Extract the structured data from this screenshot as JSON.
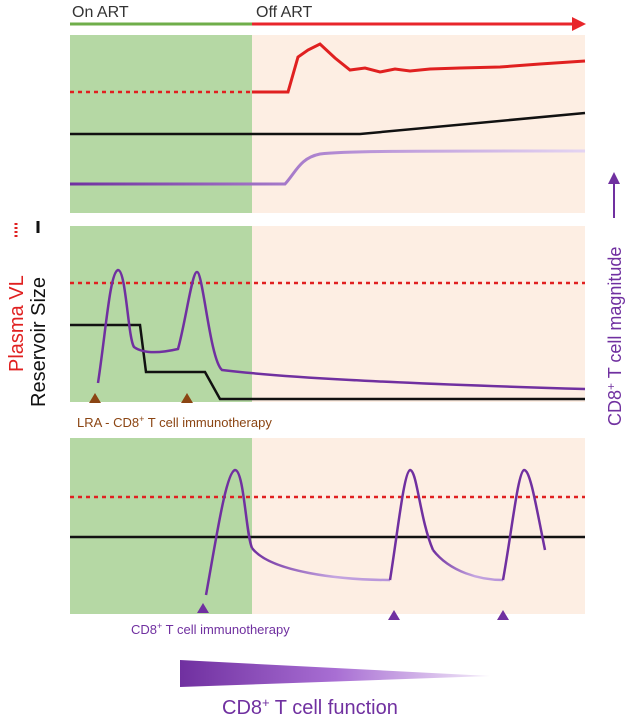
{
  "header": {
    "on_art": "On ART",
    "off_art": "Off ART"
  },
  "left_axis": {
    "plasma_vl": "Plasma VL",
    "reservoir_size": "Reservoir Size"
  },
  "right_axis": {
    "label_prefix": "CD8",
    "label_sup": "+",
    "label_suffix": " T cell magnitude"
  },
  "panel2": {
    "annotation_prefix": "LRA - CD8",
    "annotation_sup": "+",
    "annotation_suffix": " T cell immunotherapy"
  },
  "panel3": {
    "annotation_prefix": "CD8",
    "annotation_sup": "+",
    "annotation_suffix": " T cell immunotherapy"
  },
  "footer": {
    "function_prefix": "CD8",
    "function_sup": "+",
    "function_suffix": " T cell function"
  },
  "colors": {
    "on_art_bg": "#b5d8a4",
    "off_art_bg": "#fdeee3",
    "on_art_bar": "#6fae4a",
    "off_art_bar": "#e8262b",
    "plasma_vl": "#e02020",
    "reservoir": "#111111",
    "cd8": "#7030a0",
    "annotation_brown": "#8b4513"
  }
}
